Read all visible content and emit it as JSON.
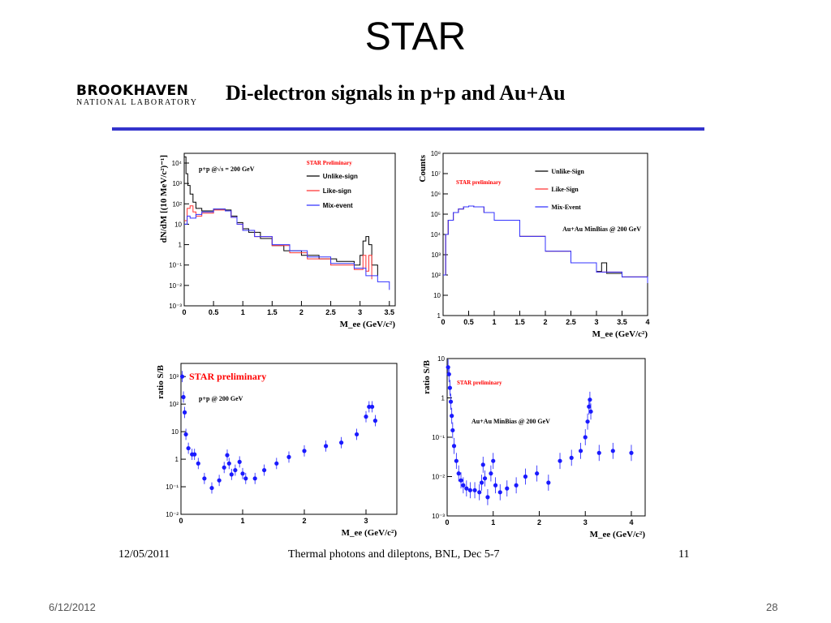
{
  "slide": {
    "title": "STAR",
    "date": "6/12/2012",
    "number": "28"
  },
  "inner": {
    "logo_line1": "BROOKHAVEN",
    "logo_line2": "NATIONAL LABORATORY",
    "title": "Di-electron signals in p+p and Au+Au",
    "footer_date": "12/05/2011",
    "footer_text": "Thermal photons and dileptons, BNL, Dec 5-7",
    "footer_page": "11"
  },
  "colors": {
    "unlike": "#000000",
    "like": "#ff3333",
    "mix": "#3333ff",
    "points": "#1a1aff",
    "prelim": "#ff0000"
  },
  "chart_data": [
    {
      "id": "pp-mass",
      "type": "line",
      "yscale": "log",
      "xlim": [
        0,
        3.6
      ],
      "ylim": [
        0.001,
        30000
      ],
      "xticks": [
        "0",
        "0.5",
        "1",
        "1.5",
        "2",
        "2.5",
        "3",
        "3.5"
      ],
      "xtick_values": [
        0,
        0.5,
        1,
        1.5,
        2,
        2.5,
        3,
        3.5
      ],
      "yticks": [
        "10⁻³",
        "10⁻²",
        "10⁻¹",
        "1",
        "10",
        "10²",
        "10³",
        "10⁴"
      ],
      "ytick_values": [
        0.001,
        0.01,
        0.1,
        1,
        10,
        100,
        1000,
        10000
      ],
      "xlabel": "M_ee (GeV/c²)",
      "ylabel": "dN/dM [(10 MeV/c²)⁻¹]",
      "annotation": "p+p @√s = 200 GeV",
      "preliminary": "STAR Preliminary",
      "series": [
        {
          "name": "Unlike-sign",
          "x": [
            0,
            0.03,
            0.06,
            0.1,
            0.15,
            0.2,
            0.3,
            0.5,
            0.7,
            0.8,
            0.9,
            1.0,
            1.1,
            1.3,
            1.5,
            1.7,
            2.0,
            2.3,
            2.6,
            2.9,
            3.0,
            3.05,
            3.1,
            3.15,
            3.2,
            3.3
          ],
          "y": [
            20000,
            3000,
            800,
            300,
            120,
            60,
            45,
            55,
            50,
            25,
            12,
            6,
            4,
            2,
            0.9,
            0.5,
            0.3,
            0.2,
            0.15,
            0.1,
            0.3,
            1.5,
            2.5,
            1,
            0.1,
            0.03
          ]
        },
        {
          "name": "Like-sign",
          "x": [
            0,
            0.05,
            0.1,
            0.15,
            0.2,
            0.3,
            0.5,
            0.7,
            0.8,
            0.9,
            1.0,
            1.2,
            1.5,
            1.8,
            2.1,
            2.5,
            2.9,
            3.05,
            3.1,
            3.15,
            3.2
          ],
          "y": [
            15,
            60,
            80,
            40,
            25,
            35,
            50,
            45,
            22,
            10,
            5,
            2.5,
            0.9,
            0.4,
            0.2,
            0.1,
            0.06,
            0.3,
            0.05,
            0.3,
            0.02
          ]
        },
        {
          "name": "Mix-event",
          "x": [
            0,
            0.05,
            0.1,
            0.2,
            0.3,
            0.5,
            0.7,
            0.8,
            0.9,
            1.0,
            1.2,
            1.5,
            1.8,
            2.1,
            2.5,
            2.9,
            3.1,
            3.3,
            3.5
          ],
          "y": [
            10,
            25,
            20,
            30,
            40,
            55,
            45,
            22,
            10,
            5,
            2.5,
            1,
            0.5,
            0.25,
            0.12,
            0.07,
            0.03,
            0.015,
            0.006
          ]
        }
      ]
    },
    {
      "id": "auau-mass",
      "type": "line",
      "yscale": "log",
      "xlim": [
        0,
        4
      ],
      "ylim": [
        1,
        100000000
      ],
      "xticks": [
        "0",
        "0.5",
        "1",
        "1.5",
        "2",
        "2.5",
        "3",
        "3.5",
        "4"
      ],
      "xtick_values": [
        0,
        0.5,
        1,
        1.5,
        2,
        2.5,
        3,
        3.5,
        4
      ],
      "yticks": [
        "1",
        "10",
        "10²",
        "10³",
        "10⁴",
        "10⁵",
        "10⁶",
        "10⁷",
        "10⁸"
      ],
      "ytick_values": [
        1,
        10,
        100,
        1000,
        10000,
        100000,
        1000000,
        10000000,
        100000000
      ],
      "xlabel": "M_ee (GeV/c²)",
      "ylabel": "Counts",
      "annotation": "Au+Au MinBias @ 200 GeV",
      "preliminary": "STAR preliminary",
      "series": [
        {
          "name": "Unlike-Sign",
          "x": [
            0.0,
            0.05,
            0.1,
            0.2,
            0.3,
            0.4,
            0.5,
            0.6,
            0.8,
            1.0,
            1.5,
            2.0,
            2.5,
            3.0,
            3.1,
            3.2,
            3.5,
            4.0
          ],
          "y": [
            100,
            10000,
            50000,
            120000,
            180000,
            230000,
            250000,
            230000,
            120000,
            50000,
            8000,
            1500,
            400,
            150,
            400,
            120,
            80,
            40
          ]
        },
        {
          "name": "Like-Sign",
          "x": [
            0.0,
            0.05,
            0.1,
            0.2,
            0.3,
            0.4,
            0.5,
            0.6,
            0.8,
            1.0,
            1.5,
            2.0,
            2.5,
            3.0,
            3.5,
            4.0
          ],
          "y": [
            100,
            10000,
            50000,
            120000,
            180000,
            230000,
            250000,
            230000,
            120000,
            50000,
            8000,
            1500,
            400,
            140,
            80,
            40
          ]
        },
        {
          "name": "Mix-Event",
          "x": [
            0.0,
            0.05,
            0.1,
            0.2,
            0.3,
            0.4,
            0.5,
            0.6,
            0.8,
            1.0,
            1.5,
            2.0,
            2.5,
            3.0,
            3.5,
            4.0
          ],
          "y": [
            100,
            10000,
            50000,
            120000,
            180000,
            230000,
            250000,
            230000,
            120000,
            50000,
            8000,
            1500,
            400,
            140,
            80,
            40
          ]
        }
      ]
    },
    {
      "id": "pp-ratio",
      "type": "scatter",
      "yscale": "log",
      "xlim": [
        0,
        3.5
      ],
      "ylim": [
        0.01,
        3000
      ],
      "xticks": [
        "0",
        "1",
        "2",
        "3"
      ],
      "xtick_values": [
        0,
        1,
        2,
        3
      ],
      "yticks": [
        "10⁻²",
        "10⁻¹",
        "1",
        "10",
        "10²",
        "10³"
      ],
      "ytick_values": [
        0.01,
        0.1,
        1,
        10,
        100,
        1000
      ],
      "xlabel": "M_ee (GeV/c²)",
      "ylabel": "ratio S/B",
      "annotation": "p+p @ 200 GeV",
      "preliminary": "STAR preliminary",
      "points": [
        {
          "x": 0.02,
          "y": 1000
        },
        {
          "x": 0.04,
          "y": 180
        },
        {
          "x": 0.06,
          "y": 50
        },
        {
          "x": 0.08,
          "y": 8
        },
        {
          "x": 0.12,
          "y": 2.5
        },
        {
          "x": 0.18,
          "y": 1.5
        },
        {
          "x": 0.22,
          "y": 1.5
        },
        {
          "x": 0.28,
          "y": 0.7
        },
        {
          "x": 0.38,
          "y": 0.2
        },
        {
          "x": 0.5,
          "y": 0.09
        },
        {
          "x": 0.62,
          "y": 0.17
        },
        {
          "x": 0.7,
          "y": 0.5
        },
        {
          "x": 0.75,
          "y": 1.4
        },
        {
          "x": 0.78,
          "y": 0.7
        },
        {
          "x": 0.82,
          "y": 0.28
        },
        {
          "x": 0.88,
          "y": 0.4
        },
        {
          "x": 0.95,
          "y": 0.8
        },
        {
          "x": 1.0,
          "y": 0.3
        },
        {
          "x": 1.05,
          "y": 0.2
        },
        {
          "x": 1.2,
          "y": 0.2
        },
        {
          "x": 1.35,
          "y": 0.4
        },
        {
          "x": 1.55,
          "y": 0.7
        },
        {
          "x": 1.75,
          "y": 1.2
        },
        {
          "x": 2.0,
          "y": 2
        },
        {
          "x": 2.35,
          "y": 3
        },
        {
          "x": 2.6,
          "y": 4
        },
        {
          "x": 2.85,
          "y": 8
        },
        {
          "x": 3.0,
          "y": 35
        },
        {
          "x": 3.05,
          "y": 80
        },
        {
          "x": 3.1,
          "y": 80
        },
        {
          "x": 3.15,
          "y": 25
        }
      ]
    },
    {
      "id": "auau-ratio",
      "type": "scatter",
      "yscale": "log",
      "xlim": [
        0,
        4.3
      ],
      "ylim": [
        0.001,
        10
      ],
      "xticks": [
        "0",
        "1",
        "2",
        "3",
        "4"
      ],
      "xtick_values": [
        0,
        1,
        2,
        3,
        4
      ],
      "yticks": [
        "10⁻³",
        "10⁻²",
        "10⁻¹",
        "1",
        "10"
      ],
      "ytick_values": [
        0.001,
        0.01,
        0.1,
        1,
        10
      ],
      "xlabel": "M_ee (GeV/c²)",
      "ylabel": "ratio S/B",
      "annotation": "Au+Au MinBias @ 200 GeV",
      "preliminary": "STAR preliminary",
      "points": [
        {
          "x": 0.02,
          "y": 6
        },
        {
          "x": 0.04,
          "y": 4
        },
        {
          "x": 0.06,
          "y": 1.8
        },
        {
          "x": 0.08,
          "y": 0.8
        },
        {
          "x": 0.1,
          "y": 0.35
        },
        {
          "x": 0.12,
          "y": 0.15
        },
        {
          "x": 0.15,
          "y": 0.06
        },
        {
          "x": 0.2,
          "y": 0.025
        },
        {
          "x": 0.25,
          "y": 0.012
        },
        {
          "x": 0.3,
          "y": 0.008
        },
        {
          "x": 0.35,
          "y": 0.006
        },
        {
          "x": 0.42,
          "y": 0.005
        },
        {
          "x": 0.5,
          "y": 0.0045
        },
        {
          "x": 0.6,
          "y": 0.0045
        },
        {
          "x": 0.7,
          "y": 0.004
        },
        {
          "x": 0.75,
          "y": 0.007
        },
        {
          "x": 0.78,
          "y": 0.02
        },
        {
          "x": 0.82,
          "y": 0.009
        },
        {
          "x": 0.88,
          "y": 0.003
        },
        {
          "x": 0.95,
          "y": 0.012
        },
        {
          "x": 1.0,
          "y": 0.025
        },
        {
          "x": 1.05,
          "y": 0.006
        },
        {
          "x": 1.15,
          "y": 0.004
        },
        {
          "x": 1.3,
          "y": 0.005
        },
        {
          "x": 1.5,
          "y": 0.006
        },
        {
          "x": 1.7,
          "y": 0.01
        },
        {
          "x": 1.95,
          "y": 0.012
        },
        {
          "x": 2.2,
          "y": 0.007
        },
        {
          "x": 2.45,
          "y": 0.025
        },
        {
          "x": 2.7,
          "y": 0.03
        },
        {
          "x": 2.9,
          "y": 0.045
        },
        {
          "x": 3.0,
          "y": 0.1
        },
        {
          "x": 3.05,
          "y": 0.25
        },
        {
          "x": 3.08,
          "y": 0.6
        },
        {
          "x": 3.1,
          "y": 0.9
        },
        {
          "x": 3.12,
          "y": 0.45
        },
        {
          "x": 3.3,
          "y": 0.04
        },
        {
          "x": 3.6,
          "y": 0.045
        },
        {
          "x": 4.0,
          "y": 0.04
        }
      ]
    }
  ]
}
